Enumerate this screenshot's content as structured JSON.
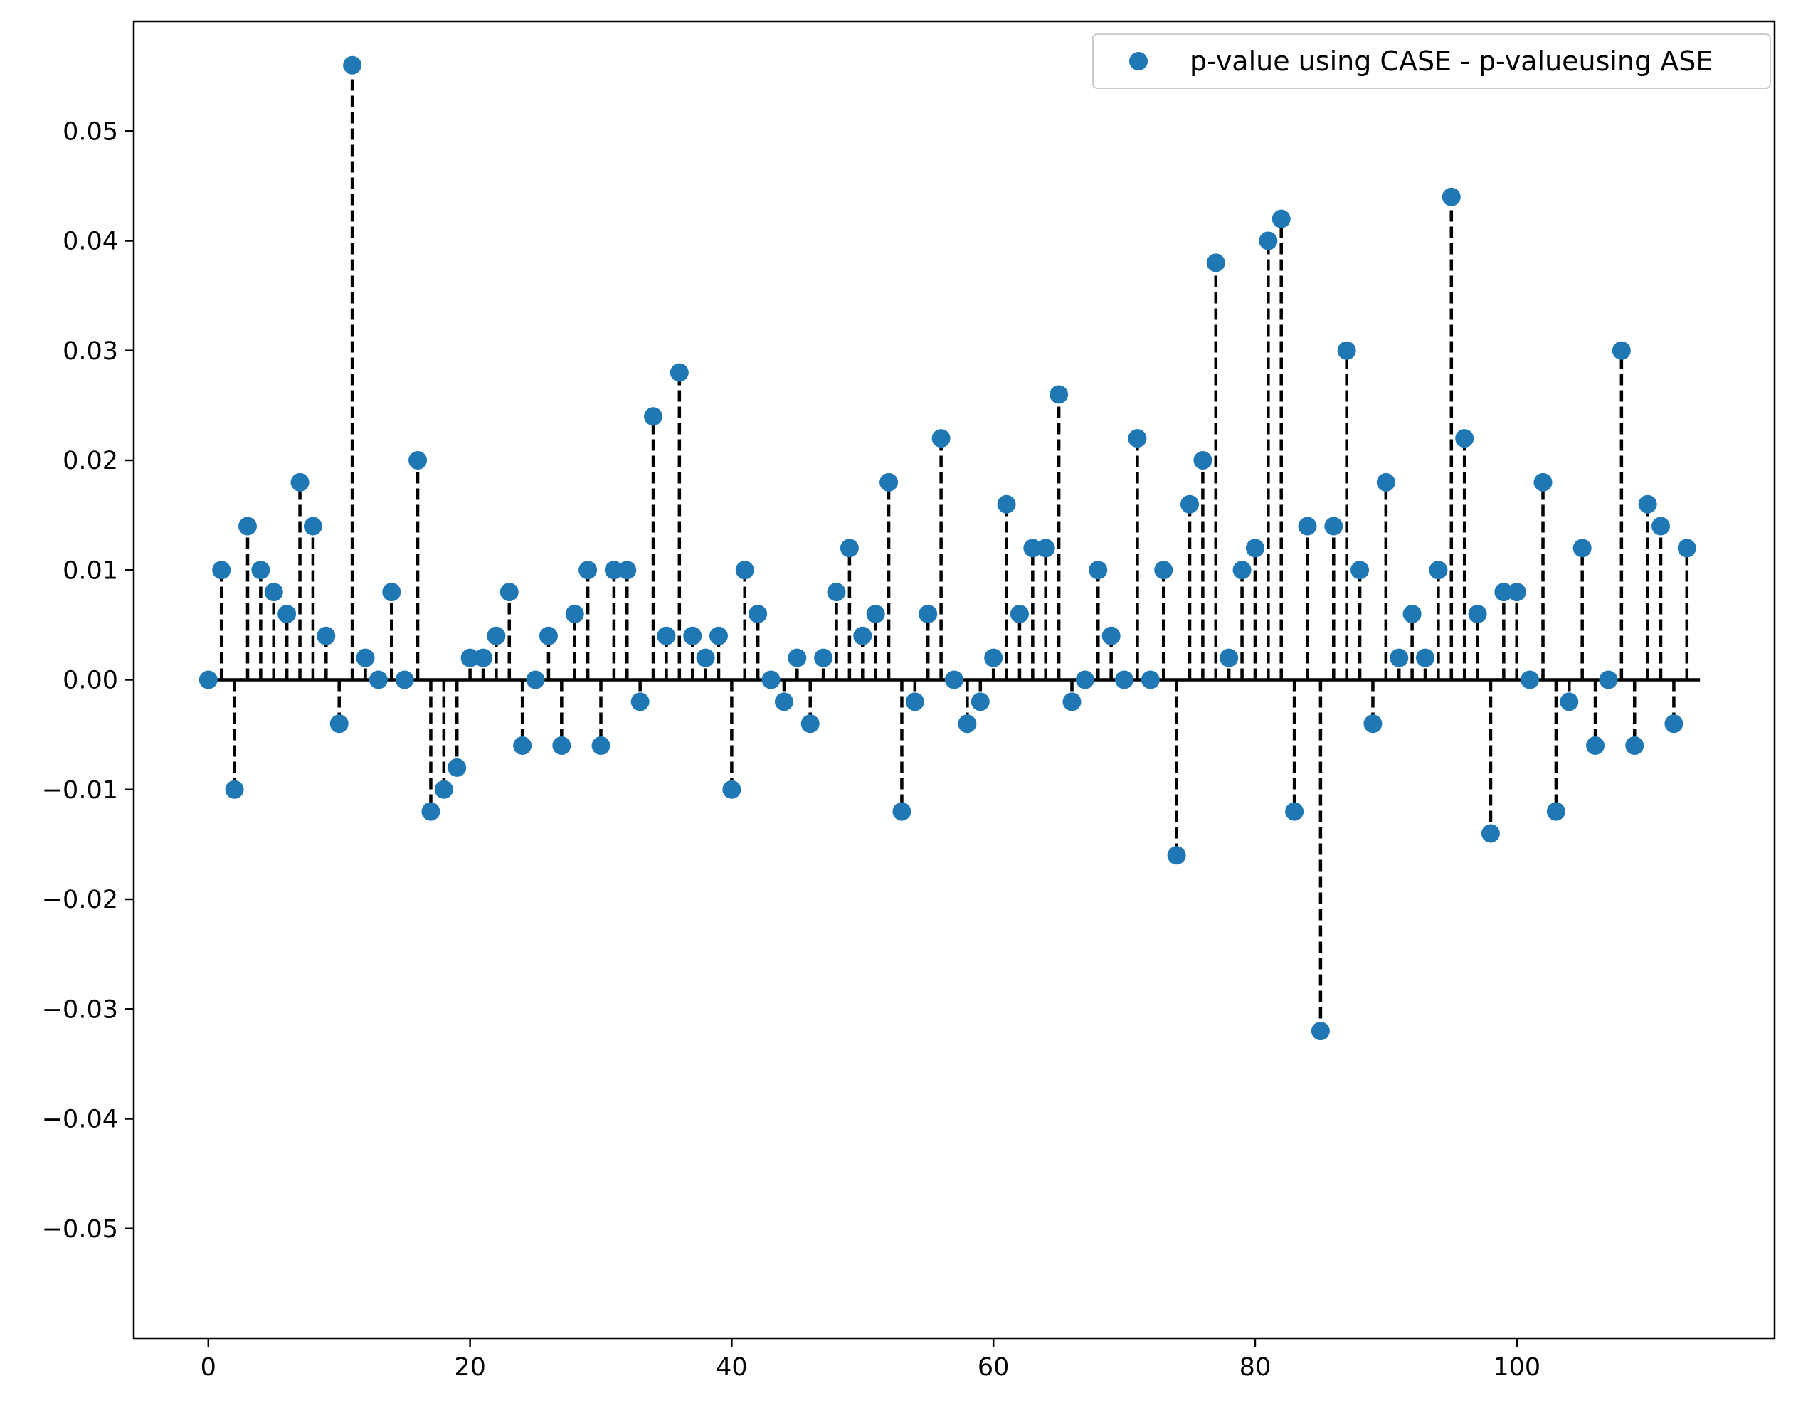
{
  "chart_data": {
    "type": "scatter",
    "title": "",
    "xlabel": "",
    "ylabel": "",
    "xlim": [
      -5.7,
      119.7
    ],
    "ylim": [
      -0.06,
      0.06
    ],
    "xticks": [
      0,
      20,
      40,
      60,
      80,
      100
    ],
    "xtick_labels": [
      "0",
      "20",
      "40",
      "60",
      "80",
      "100"
    ],
    "yticks": [
      -0.05,
      -0.04,
      -0.03,
      -0.02,
      -0.01,
      0.0,
      0.01,
      0.02,
      0.03,
      0.04,
      0.05
    ],
    "ytick_labels": [
      "−0.05",
      "−0.04",
      "−0.03",
      "−0.02",
      "−0.01",
      "0.00",
      "0.01",
      "0.02",
      "0.03",
      "0.04",
      "0.05"
    ],
    "grid": false,
    "legend": {
      "position": "top-right",
      "entries": [
        "p-value using CASE - p-valueusing ASE"
      ]
    },
    "baseline": {
      "y": 0,
      "x_range": [
        0,
        114
      ],
      "color": "#000000"
    },
    "stems": {
      "style": "dashed",
      "color": "#000000"
    },
    "marker_color": "#1f77b4",
    "series": [
      {
        "name": "p-value using CASE - p-valueusing ASE",
        "x": [
          0,
          1,
          2,
          3,
          4,
          5,
          6,
          7,
          8,
          9,
          10,
          11,
          12,
          13,
          14,
          15,
          16,
          17,
          18,
          19,
          20,
          21,
          22,
          23,
          24,
          25,
          26,
          27,
          28,
          29,
          30,
          31,
          32,
          33,
          34,
          35,
          36,
          37,
          38,
          39,
          40,
          41,
          42,
          43,
          44,
          45,
          46,
          47,
          48,
          49,
          50,
          51,
          52,
          53,
          54,
          55,
          56,
          57,
          58,
          59,
          60,
          61,
          62,
          63,
          64,
          65,
          66,
          67,
          68,
          69,
          70,
          71,
          72,
          73,
          74,
          75,
          76,
          77,
          78,
          79,
          80,
          81,
          82,
          83,
          84,
          85,
          86,
          87,
          88,
          89,
          90,
          91,
          92,
          93,
          94,
          95,
          96,
          97,
          98,
          99,
          100,
          101,
          102,
          103,
          104,
          105,
          106,
          107,
          108,
          109,
          110,
          111,
          112,
          113
        ],
        "y": [
          0.0,
          0.01,
          -0.01,
          0.014,
          0.01,
          0.008,
          0.006,
          0.018,
          0.014,
          0.004,
          -0.004,
          0.056,
          0.002,
          0.0,
          0.008,
          0.0,
          0.02,
          -0.012,
          -0.01,
          -0.008,
          0.002,
          0.002,
          0.004,
          0.008,
          -0.006,
          0.0,
          0.004,
          -0.006,
          0.006,
          0.01,
          -0.006,
          0.01,
          0.01,
          -0.002,
          0.024,
          0.004,
          0.028,
          0.004,
          0.002,
          0.004,
          -0.01,
          0.01,
          0.006,
          0.0,
          -0.002,
          0.002,
          -0.004,
          0.002,
          0.008,
          0.012,
          0.004,
          0.006,
          0.018,
          -0.012,
          -0.002,
          0.006,
          0.022,
          0.0,
          -0.004,
          -0.002,
          0.002,
          0.016,
          0.006,
          0.012,
          0.012,
          0.026,
          -0.002,
          0.0,
          0.01,
          0.004,
          0.0,
          0.022,
          0.0,
          0.01,
          -0.016,
          0.016,
          0.02,
          0.038,
          0.002,
          0.01,
          0.012,
          0.04,
          0.042,
          -0.012,
          0.014,
          -0.032,
          0.014,
          0.03,
          0.01,
          -0.004,
          0.018,
          0.002,
          0.006,
          0.002,
          0.01,
          0.044,
          0.022,
          0.006,
          -0.014,
          0.008,
          0.008,
          0.0,
          0.018,
          -0.012,
          -0.002,
          0.012,
          -0.006,
          0.0,
          0.03,
          -0.006,
          0.016,
          0.014,
          -0.004,
          0.012
        ]
      }
    ]
  }
}
